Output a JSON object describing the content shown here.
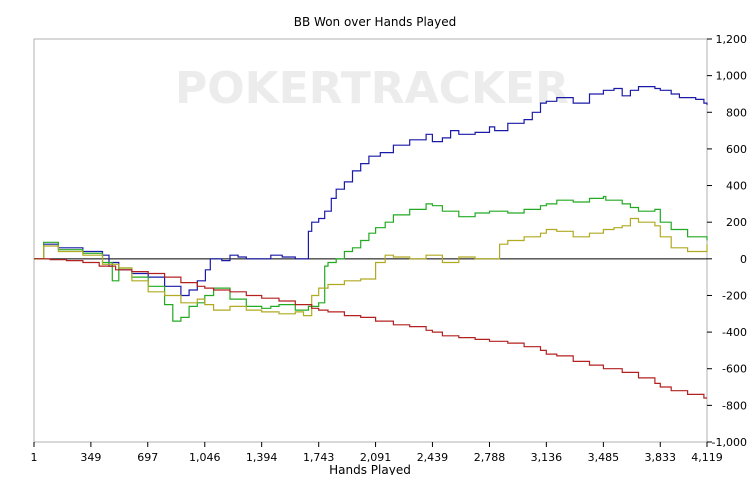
{
  "chart_data": {
    "type": "line",
    "title": "BB Won over Hands Played",
    "xlabel": "Hands Played",
    "ylabel": "",
    "watermark": "POKERTRACKER",
    "xlim": [
      1,
      4119
    ],
    "ylim": [
      -1000,
      1200
    ],
    "x_ticks": [
      1,
      349,
      697,
      1046,
      1394,
      1743,
      2091,
      2439,
      2788,
      3136,
      3485,
      3833,
      4119
    ],
    "x_tick_labels": [
      "1",
      "349",
      "697",
      "1,046",
      "1,394",
      "1,743",
      "2,091",
      "2,439",
      "2,788",
      "3,136",
      "3,485",
      "3,833",
      "4,119"
    ],
    "y_ticks": [
      -1000,
      -800,
      -600,
      -400,
      -200,
      0,
      200,
      400,
      600,
      800,
      1000,
      1200
    ],
    "y_tick_labels": [
      "-1,000",
      "-800",
      "-600",
      "-400",
      "-200",
      "0",
      "200",
      "400",
      "600",
      "800",
      "1,000",
      "1,200"
    ],
    "y_axis_side": "right",
    "grid": false,
    "zero_line": true,
    "legend": "none",
    "series": [
      {
        "color": "#1a1aa8",
        "x": [
          1,
          60,
          150,
          300,
          420,
          460,
          480,
          520,
          600,
          700,
          800,
          900,
          950,
          1000,
          1050,
          1080,
          1150,
          1200,
          1250,
          1300,
          1394,
          1450,
          1520,
          1600,
          1680,
          1700,
          1743,
          1780,
          1820,
          1850,
          1900,
          1950,
          2000,
          2050,
          2091,
          2120,
          2200,
          2300,
          2400,
          2439,
          2500,
          2550,
          2600,
          2700,
          2788,
          2820,
          2900,
          3000,
          3050,
          3100,
          3136,
          3200,
          3300,
          3400,
          3485,
          3550,
          3600,
          3650,
          3700,
          3800,
          3833,
          3900,
          3950,
          4000,
          4050,
          4100,
          4119
        ],
        "y": [
          0,
          80,
          60,
          40,
          20,
          -40,
          -20,
          -60,
          -80,
          -100,
          -150,
          -200,
          -170,
          -120,
          -60,
          0,
          -10,
          20,
          10,
          0,
          0,
          20,
          10,
          0,
          150,
          200,
          220,
          260,
          330,
          380,
          420,
          480,
          520,
          560,
          560,
          580,
          620,
          650,
          680,
          640,
          660,
          700,
          680,
          690,
          720,
          700,
          740,
          760,
          800,
          850,
          860,
          880,
          850,
          900,
          920,
          930,
          890,
          920,
          940,
          930,
          920,
          900,
          880,
          880,
          870,
          850,
          840
        ]
      },
      {
        "color": "#22aa22",
        "x": [
          1,
          60,
          150,
          300,
          420,
          480,
          520,
          600,
          700,
          800,
          850,
          900,
          950,
          1000,
          1046,
          1100,
          1200,
          1300,
          1394,
          1450,
          1500,
          1600,
          1680,
          1743,
          1780,
          1800,
          1850,
          1900,
          1950,
          2000,
          2050,
          2091,
          2150,
          2200,
          2300,
          2400,
          2439,
          2500,
          2600,
          2700,
          2788,
          2850,
          2900,
          3000,
          3100,
          3136,
          3200,
          3300,
          3400,
          3485,
          3500,
          3600,
          3650,
          3700,
          3800,
          3833,
          3900,
          4000,
          4119
        ],
        "y": [
          0,
          90,
          50,
          30,
          -20,
          -120,
          -50,
          -100,
          -150,
          -250,
          -340,
          -320,
          -260,
          -240,
          -200,
          -160,
          -220,
          -260,
          -270,
          -260,
          -250,
          -280,
          -260,
          -240,
          -40,
          -20,
          0,
          40,
          60,
          100,
          140,
          170,
          200,
          240,
          270,
          300,
          290,
          260,
          230,
          250,
          260,
          260,
          250,
          270,
          290,
          300,
          320,
          310,
          330,
          340,
          320,
          300,
          280,
          260,
          270,
          200,
          160,
          120,
          100
        ]
      },
      {
        "color": "#b0aa20",
        "x": [
          1,
          60,
          150,
          300,
          420,
          520,
          600,
          700,
          800,
          900,
          1000,
          1046,
          1100,
          1200,
          1300,
          1394,
          1500,
          1600,
          1650,
          1700,
          1743,
          1800,
          1900,
          2000,
          2091,
          2150,
          2200,
          2300,
          2400,
          2500,
          2600,
          2700,
          2788,
          2850,
          2900,
          3000,
          3100,
          3136,
          3200,
          3300,
          3400,
          3485,
          3550,
          3600,
          3650,
          3700,
          3800,
          3833,
          3900,
          4000,
          4119
        ],
        "y": [
          0,
          70,
          40,
          20,
          -30,
          -50,
          -120,
          -180,
          -200,
          -240,
          -220,
          -250,
          -280,
          -260,
          -280,
          -290,
          -300,
          -290,
          -310,
          -200,
          -160,
          -140,
          -120,
          -110,
          -20,
          20,
          10,
          0,
          20,
          -20,
          10,
          0,
          0,
          80,
          100,
          120,
          140,
          160,
          150,
          120,
          140,
          160,
          170,
          180,
          220,
          200,
          180,
          120,
          60,
          40,
          80
        ]
      },
      {
        "color": "#b32020",
        "x": [
          1,
          100,
          200,
          300,
          400,
          500,
          600,
          700,
          800,
          900,
          1000,
          1046,
          1100,
          1200,
          1300,
          1394,
          1500,
          1600,
          1700,
          1743,
          1800,
          1900,
          2000,
          2091,
          2200,
          2300,
          2400,
          2439,
          2500,
          2600,
          2700,
          2788,
          2850,
          2900,
          3000,
          3100,
          3136,
          3200,
          3300,
          3400,
          3485,
          3600,
          3700,
          3800,
          3833,
          3900,
          4000,
          4100,
          4119
        ],
        "y": [
          0,
          -5,
          -10,
          -20,
          -40,
          -60,
          -70,
          -80,
          -100,
          -130,
          -150,
          -160,
          -170,
          -180,
          -200,
          -215,
          -230,
          -250,
          -270,
          -280,
          -290,
          -310,
          -320,
          -340,
          -360,
          -370,
          -390,
          -400,
          -420,
          -430,
          -440,
          -450,
          -450,
          -460,
          -480,
          -500,
          -520,
          -530,
          -560,
          -580,
          -600,
          -620,
          -650,
          -680,
          -700,
          -720,
          -740,
          -760,
          -760
        ]
      }
    ]
  }
}
